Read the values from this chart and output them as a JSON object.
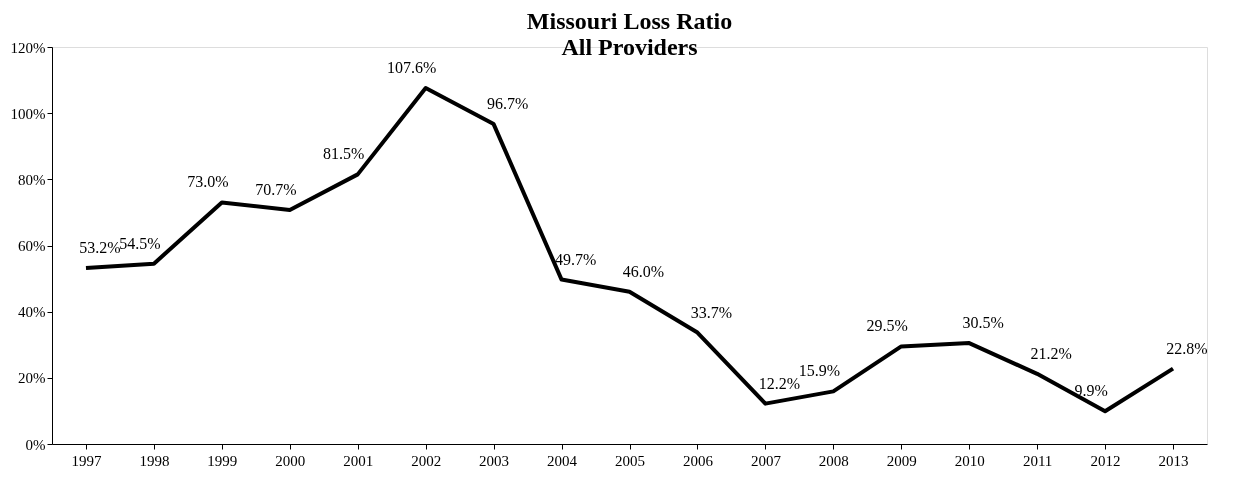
{
  "chart_data": {
    "type": "line",
    "title": [
      "Missouri Loss Ratio",
      "All Providers"
    ],
    "categories": [
      "1997",
      "1998",
      "1999",
      "2000",
      "2001",
      "2002",
      "2003",
      "2004",
      "2005",
      "2006",
      "2007",
      "2008",
      "2009",
      "2010",
      "2011",
      "2012",
      "2013"
    ],
    "series": [
      {
        "color": "#000000",
        "values": [
          53.2,
          54.5,
          73.0,
          70.7,
          81.5,
          107.6,
          96.7,
          49.7,
          46.0,
          33.7,
          12.2,
          15.9,
          29.5,
          30.5,
          21.2,
          9.9,
          22.8
        ],
        "value_labels": [
          "53.2%",
          "54.5%",
          "73.0%",
          "70.7%",
          "81.5%",
          "107.6%",
          "96.7%",
          "49.7%",
          "46.0%",
          "33.7%",
          "12.2%",
          "15.9%",
          "29.5%",
          "30.5%",
          "21.2%",
          "9.9%",
          "22.8%"
        ]
      }
    ],
    "ylim": [
      0,
      120
    ],
    "yticks": [
      {
        "value": 0,
        "label": "0%"
      },
      {
        "value": 20,
        "label": "20%"
      },
      {
        "value": 40,
        "label": "40%"
      },
      {
        "value": 60,
        "label": "60%"
      },
      {
        "value": 80,
        "label": "80%"
      },
      {
        "value": 100,
        "label": "100%"
      },
      {
        "value": 120,
        "label": "120%"
      }
    ],
    "grid": false,
    "marker": "none",
    "line_style": "solid"
  }
}
